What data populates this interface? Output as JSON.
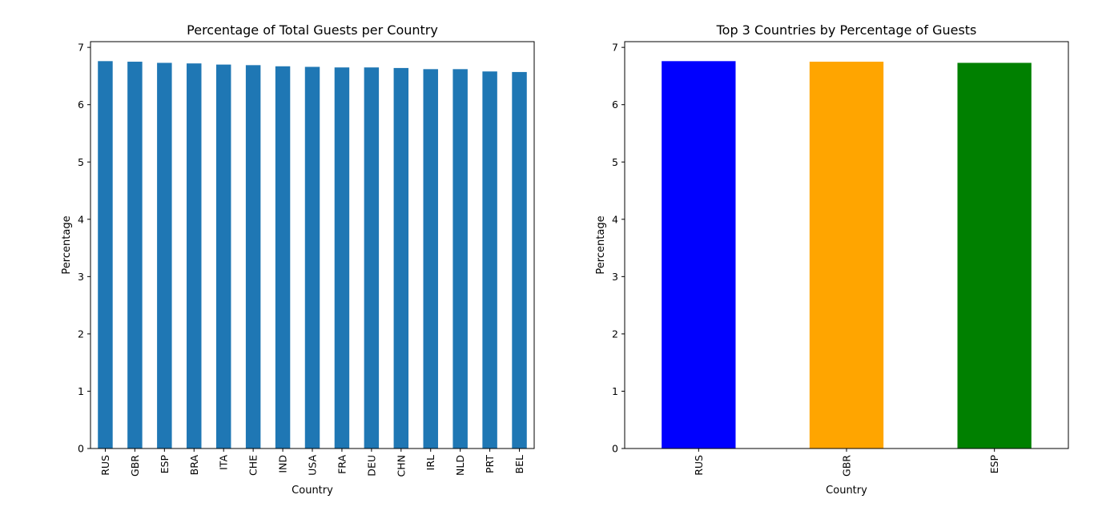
{
  "chart_data": [
    {
      "type": "bar",
      "title": "Percentage of Total Guests per Country",
      "xlabel": "Country",
      "ylabel": "Percentage",
      "categories": [
        "RUS",
        "GBR",
        "ESP",
        "BRA",
        "ITA",
        "CHE",
        "IND",
        "USA",
        "FRA",
        "DEU",
        "CHN",
        "IRL",
        "NLD",
        "PRT",
        "BEL"
      ],
      "values": [
        6.76,
        6.75,
        6.73,
        6.72,
        6.7,
        6.69,
        6.67,
        6.66,
        6.65,
        6.65,
        6.64,
        6.62,
        6.62,
        6.58,
        6.57
      ],
      "ylim": [
        0,
        7.1
      ],
      "yticks": [
        "0",
        "1",
        "2",
        "3",
        "4",
        "5",
        "6",
        "7"
      ],
      "colors": [
        "#1f77b4"
      ],
      "grid": false,
      "legend": "none"
    },
    {
      "type": "bar",
      "title": "Top 3 Countries by Percentage of Guests",
      "xlabel": "Country",
      "ylabel": "Percentage",
      "categories": [
        "RUS",
        "GBR",
        "ESP"
      ],
      "values": [
        6.76,
        6.75,
        6.73
      ],
      "ylim": [
        0,
        7.1
      ],
      "yticks": [
        "0",
        "1",
        "2",
        "3",
        "4",
        "5",
        "6",
        "7"
      ],
      "colors": [
        "#0000ff",
        "#ffa500",
        "#008000"
      ],
      "grid": false,
      "legend": "none"
    }
  ]
}
